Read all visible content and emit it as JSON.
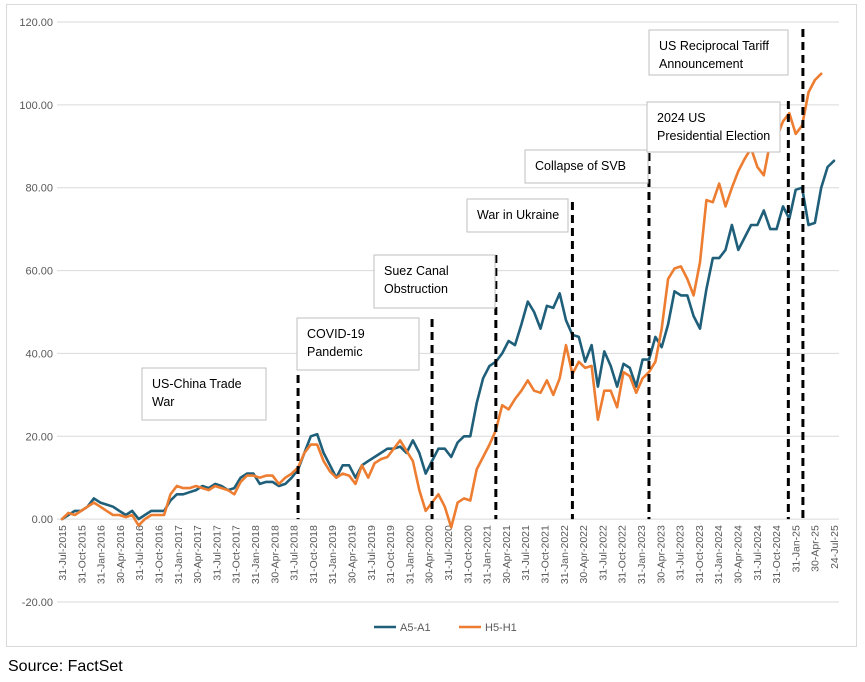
{
  "source": "Source: FactSet",
  "chart_data": {
    "type": "line",
    "title": "",
    "xlabel": "",
    "ylabel": "",
    "ylim": [
      -20,
      120
    ],
    "yticks": [
      -20,
      0,
      20,
      40,
      60,
      80,
      100,
      120
    ],
    "ytick_labels": [
      "-20.00",
      "0.00",
      "20.00",
      "40.00",
      "60.00",
      "80.00",
      "100.00",
      "120.00"
    ],
    "grid": "horizontal",
    "legend_position": "bottom-center",
    "x_start": "31-Jul-2015",
    "x_end": "24-Jul-25",
    "x_tick_labels": [
      "31-Jul-2015",
      "31-Oct-2015",
      "31-Jan-2016",
      "30-Apr-2016",
      "31-Jul-2016",
      "31-Oct-2016",
      "31-Jan-2017",
      "30-Apr-2017",
      "31-Jul-2017",
      "31-Oct-2017",
      "31-Jan-2018",
      "30-Apr-2018",
      "31-Jul-2018",
      "31-Oct-2018",
      "31-Jan-2019",
      "30-Apr-2019",
      "31-Jul-2019",
      "31-Oct-2019",
      "31-Jan-2020",
      "30-Apr-2020",
      "31-Jul-2020",
      "31-Oct-2020",
      "31-Jan-2021",
      "30-Apr-2021",
      "31-Jul-2021",
      "31-Oct-2021",
      "31-Jan-2022",
      "30-Apr-2022",
      "31-Jul-2022",
      "31-Oct-2022",
      "31-Jan-2023",
      "30-Apr-2023",
      "31-Jul-2023",
      "31-Oct-2023",
      "31-Jan-2024",
      "30-Apr-2024",
      "31-Jul-2024",
      "31-Oct-2024",
      "31-Jan-25",
      "30-Apr-25",
      "24-Jul-25"
    ],
    "series": [
      {
        "name": "A5-A1",
        "color": "#1f5f7a",
        "values": [
          0,
          1,
          2,
          2,
          3,
          5,
          4,
          3.5,
          3,
          2,
          1,
          2,
          0,
          1,
          2,
          2,
          2,
          4.5,
          6,
          6,
          6.5,
          7,
          8,
          7.5,
          8.5,
          8,
          7,
          7.5,
          10,
          11,
          11,
          8.5,
          9,
          9,
          8,
          8.5,
          10,
          12,
          16,
          20,
          20.5,
          16,
          13,
          10,
          13,
          13,
          10,
          13,
          14,
          15,
          16,
          17,
          17,
          17.5,
          16,
          19,
          16,
          11,
          14,
          17,
          17,
          15,
          18.5,
          20,
          20,
          28,
          34,
          37,
          38,
          40,
          43,
          42,
          47,
          52.5,
          50,
          46,
          51.5,
          51,
          54.5,
          48,
          44.5,
          44,
          38,
          42,
          32,
          40.5,
          37,
          32,
          37.5,
          36.5,
          32,
          38.5,
          38.5,
          44,
          41.5,
          47,
          55,
          54,
          54,
          49,
          46,
          55.5,
          63,
          63,
          65,
          71,
          65,
          68,
          71,
          71,
          74.5,
          70,
          70,
          75.5,
          72.5,
          79.5,
          80,
          71,
          71.5,
          80,
          85,
          86.5
        ]
      },
      {
        "name": "H5-H1",
        "color": "#ed7d31",
        "values": [
          0,
          1.5,
          1,
          2,
          3,
          4,
          3,
          2,
          1,
          1,
          0.5,
          1,
          -1.5,
          0,
          1,
          1,
          1,
          6,
          8,
          7.5,
          7.5,
          8,
          7.5,
          7,
          8,
          7.5,
          7,
          6,
          9,
          10.5,
          10.5,
          10,
          10.5,
          10.5,
          8.5,
          10,
          11,
          12.5,
          16,
          18,
          18,
          14,
          11.5,
          10,
          11,
          10.5,
          8.5,
          13,
          10,
          13.5,
          14.5,
          15,
          17,
          19,
          16.5,
          14,
          7,
          2,
          4,
          6,
          3,
          -2,
          4,
          5,
          4.5,
          12,
          15,
          18,
          21.5,
          27.5,
          26.5,
          29,
          31,
          33.5,
          31,
          30.5,
          33.5,
          30,
          34,
          42,
          35,
          38,
          36.5,
          37,
          24,
          31,
          31,
          27,
          35.5,
          34.5,
          30.5,
          34,
          35.5,
          38,
          46,
          58,
          60.5,
          61,
          58,
          54,
          62,
          77,
          76.5,
          81,
          75.5,
          80,
          84,
          87,
          89.5,
          85,
          83,
          91,
          92,
          96,
          98,
          93,
          95,
          103,
          106,
          107.5
        ]
      }
    ],
    "annotations": [
      {
        "label": "US-China Trade War",
        "lines": [
          "US-China Trade",
          "War"
        ],
        "x_index": 37
      },
      {
        "label": "COVID-19 Pandemic",
        "lines": [
          "COVID-19",
          "Pandemic"
        ],
        "x_index": 58
      },
      {
        "label": "Suez Canal Obstruction",
        "lines": [
          "Suez Canal",
          "Obstruction"
        ],
        "x_index": 68
      },
      {
        "label": "War in Ukraine",
        "lines": [
          "War in Ukraine"
        ],
        "x_index": 80
      },
      {
        "label": "Collapse of SVB",
        "lines": [
          "Collapse of SVB"
        ],
        "x_index": 92
      },
      {
        "label": "2024 US Presidential Election",
        "lines": [
          "2024 US",
          "Presidential Election"
        ],
        "x_index": 114
      },
      {
        "label": "US Reciprocal Tariff Announcement",
        "lines": [
          "US Reciprocal Tariff",
          "Announcement"
        ],
        "x_index": 115.5
      }
    ]
  }
}
